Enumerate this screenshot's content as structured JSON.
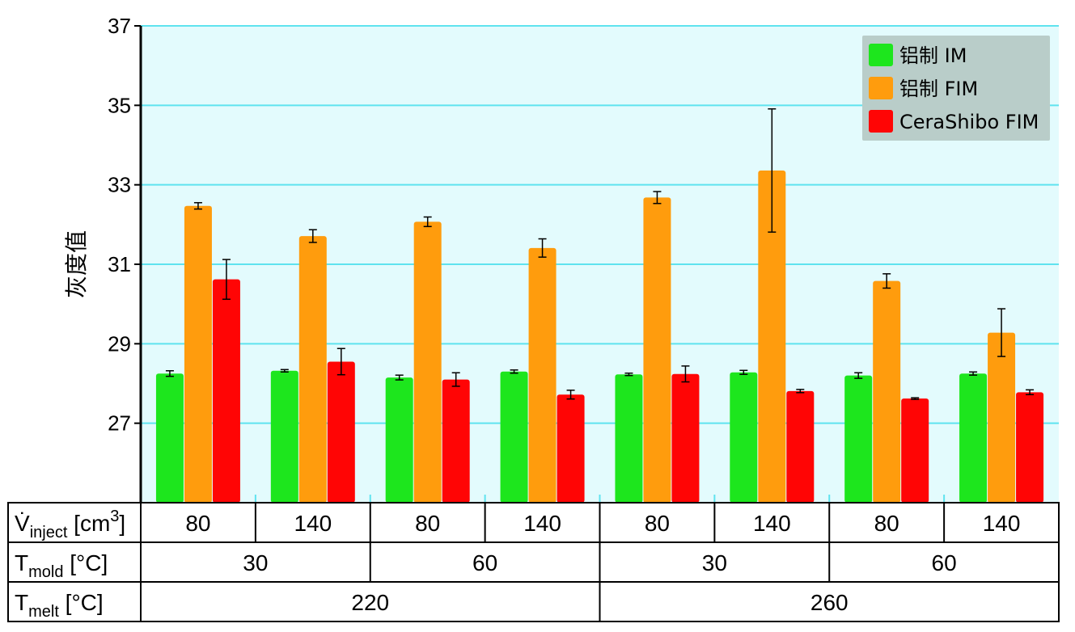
{
  "chart_data": {
    "type": "bar",
    "ylabel": "灰度值",
    "ylim": [
      25,
      37
    ],
    "yticks": [
      27,
      29,
      31,
      33,
      35,
      37
    ],
    "grid": true,
    "legend_position": "top-right",
    "series": [
      {
        "name": "铝制 IM",
        "color": "#1de61d",
        "values": [
          28.25,
          28.32,
          28.15,
          28.3,
          28.23,
          28.28,
          28.2,
          28.25
        ],
        "errors": [
          0.07,
          0.03,
          0.06,
          0.04,
          0.03,
          0.05,
          0.07,
          0.04
        ]
      },
      {
        "name": "铝制 FIM",
        "color": "#ff9c0d",
        "values": [
          32.47,
          31.71,
          32.07,
          31.41,
          32.68,
          33.36,
          30.58,
          29.28
        ],
        "errors": [
          0.08,
          0.16,
          0.12,
          0.23,
          0.15,
          1.55,
          0.18,
          0.6
        ]
      },
      {
        "name": "CeraShibo FIM",
        "color": "#ff0505",
        "values": [
          30.62,
          28.55,
          28.1,
          27.72,
          28.24,
          27.81,
          27.62,
          27.78
        ],
        "errors": [
          0.5,
          0.33,
          0.17,
          0.11,
          0.2,
          0.04,
          0.02,
          0.06
        ]
      }
    ],
    "table": {
      "rows": [
        {
          "label_main": "V̇",
          "label_sub": "inject",
          "label_unit": " [cm",
          "label_sup": "3",
          "label_end": "]",
          "cells": [
            "80",
            "140",
            "80",
            "140",
            "80",
            "140",
            "80",
            "140"
          ],
          "span": 1
        },
        {
          "label_main": "T",
          "label_sub": "mold",
          "label_unit": " [°C]",
          "label_sup": "",
          "label_end": "",
          "cells": [
            "30",
            "60",
            "30",
            "60"
          ],
          "span": 2
        },
        {
          "label_main": "T",
          "label_sub": "melt",
          "label_unit": " [°C]",
          "label_sup": "",
          "label_end": "",
          "cells": [
            "220",
            "260"
          ],
          "span": 4
        }
      ]
    }
  },
  "colors": {
    "plot_background": "#e3fbfd",
    "gridline": "#5fe3ef",
    "legend_background": "#b9cdc9"
  }
}
